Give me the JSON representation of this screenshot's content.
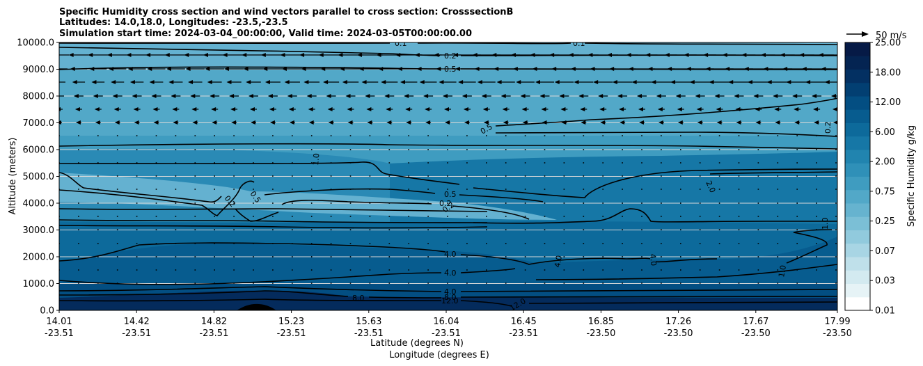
{
  "chart_data": {
    "type": "heatmap",
    "title_lines": [
      "Specific Humidity cross section and wind vectors parallel to cross section: CrosssectionB",
      "Latitudes: 14.0,18.0, Longitudes: -23.5,-23.5",
      "Simulation start time: 2024-03-04_00:00:00, Valid time: 2024-03-05T00:00:00.00"
    ],
    "ylabel": "Altitude (meters)",
    "xlabel_lat": "Latitude (degrees N)",
    "xlabel_lon": "Longitude (degrees E)",
    "ylim": [
      0,
      10000
    ],
    "y_ticks": [
      "0.0",
      "1000.0",
      "2000.0",
      "3000.0",
      "4000.0",
      "5000.0",
      "6000.0",
      "7000.0",
      "8000.0",
      "9000.0",
      "10000.0"
    ],
    "x_ticks": [
      {
        "lat": "14.01",
        "lon": "-23.51"
      },
      {
        "lat": "14.42",
        "lon": "-23.51"
      },
      {
        "lat": "14.82",
        "lon": "-23.51"
      },
      {
        "lat": "15.23",
        "lon": "-23.51"
      },
      {
        "lat": "15.63",
        "lon": "-23.51"
      },
      {
        "lat": "16.04",
        "lon": "-23.51"
      },
      {
        "lat": "16.45",
        "lon": "-23.51"
      },
      {
        "lat": "16.85",
        "lon": "-23.50"
      },
      {
        "lat": "17.26",
        "lon": "-23.50"
      },
      {
        "lat": "17.67",
        "lon": "-23.50"
      },
      {
        "lat": "17.99",
        "lon": "-23.50"
      }
    ],
    "grid": "horizontal",
    "colorbar": {
      "label": "Specific Humidity g/kg",
      "ticks": [
        "0.01",
        "0.03",
        "0.07",
        "0.25",
        "0.75",
        "2.00",
        "6.00",
        "12.00",
        "18.00",
        "25.00"
      ],
      "colors": [
        "#ffffff",
        "#e6f3f6",
        "#d3eaf0",
        "#bfe0ea",
        "#a8d5e4",
        "#91cadd",
        "#7bbfd6",
        "#66b3cf",
        "#52a8c8",
        "#3f9cc0",
        "#2f90b8",
        "#2184af",
        "#1677a6",
        "#0d6a9b",
        "#075c8f",
        "#034e82",
        "#023f72",
        "#033062",
        "#042452",
        "#061a46"
      ]
    },
    "wind_key": {
      "label": "50 m/s"
    },
    "contour_labels": [
      "0.1",
      "0.2",
      "0.5",
      "1.0",
      "2.0",
      "4.0",
      "8.0",
      "12.0"
    ],
    "fill_colors": {
      "upper": "#52a8c8",
      "upper_light": "#64b1d0",
      "mid": "#2a8ab5",
      "mid_dark": "#1677a6",
      "lower": "#0a6596",
      "low": "#034e82",
      "bottom": "#042b5c",
      "terrain": "#000000"
    }
  }
}
